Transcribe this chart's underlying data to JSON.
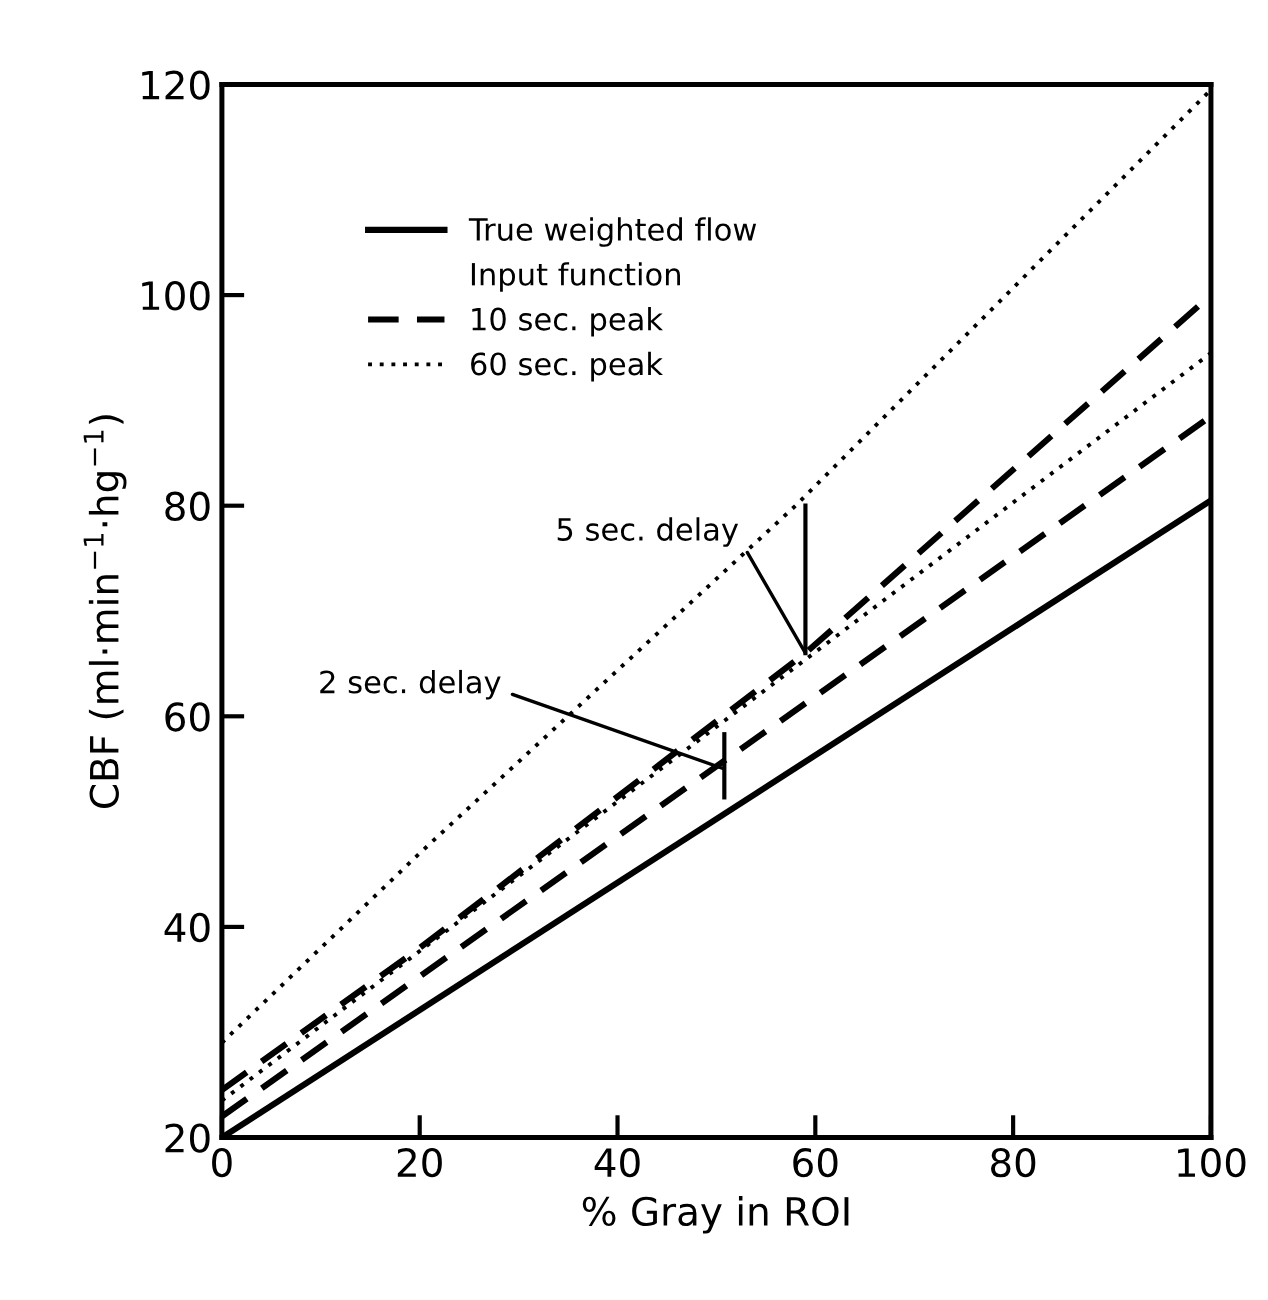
{
  "chart_data": {
    "type": "line",
    "xlabel": "% Gray in ROI",
    "ylabel": "CBF (ml·min$^{−1}$·hg$^{−1}$)",
    "legend_title": "Input function",
    "xlim": [
      0,
      100
    ],
    "ylim": [
      20,
      120
    ],
    "xticks": [
      0,
      20,
      40,
      60,
      80,
      100
    ],
    "yticks": [
      20,
      40,
      60,
      80,
      100,
      120
    ],
    "grid": false,
    "legend": "top left",
    "marker": "none",
    "series": [
      {
        "name": "True weighted flow",
        "color": "#000000",
        "line_style": "solid",
        "x": [
          0,
          100
        ],
        "values": [
          20,
          80.5
        ]
      },
      {
        "name": "10 sec. peak",
        "color": "#000000",
        "line_style": "dashed",
        "x": [
          0,
          100
        ],
        "values": [
          22,
          88.5
        ]
      },
      {
        "color": "#000000",
        "line_style": "dashed",
        "x": [
          0,
          20,
          59,
          100
        ],
        "values": [
          24.5,
          38,
          66,
          100
        ]
      },
      {
        "name": "60 sec. peak",
        "color": "#000000",
        "line_style": "dotted",
        "x": [
          0,
          100
        ],
        "values": [
          23.5,
          94.5
        ]
      },
      {
        "color": "#000000",
        "line_style": "dotted",
        "x": [
          0,
          20,
          58,
          100
        ],
        "values": [
          29,
          47,
          80,
          119.5
        ]
      }
    ],
    "annotations": [
      {
        "text": "5 sec. delay",
        "x": 59,
        "y": 66
      },
      {
        "text": "2 sec. delay",
        "x": 50.8,
        "y": 55
      }
    ]
  }
}
